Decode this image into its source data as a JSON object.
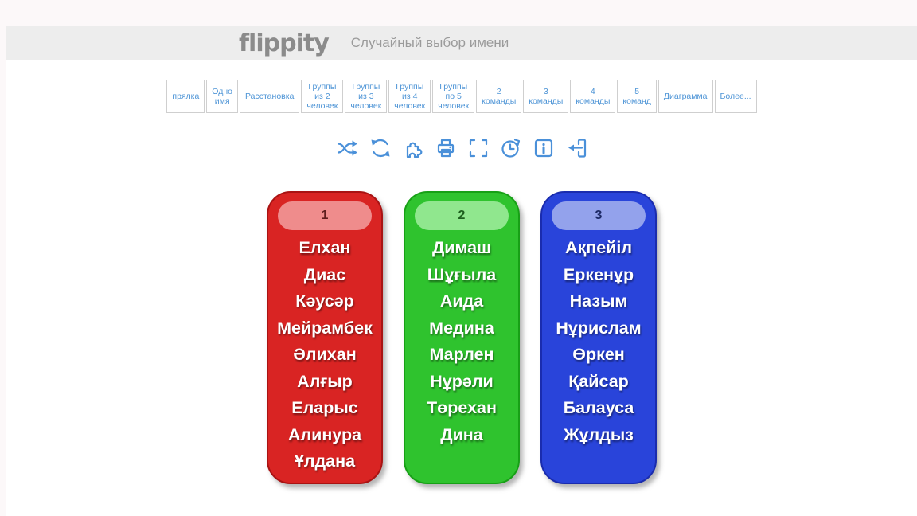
{
  "header": {
    "logo_text": "flippity",
    "page_title": "Случайный выбор имени"
  },
  "tabs": [
    "прялка",
    "Одно имя",
    "Расстановка",
    "Группы из 2 человек",
    "Группы из 3 человек",
    "Группы из 4 человек",
    "Группы по 5 человек",
    "2 команды",
    "3 команды",
    "4 команды",
    "5 команд",
    "Диаграмма",
    "Более..."
  ],
  "toolbar": {
    "icon_color": "#4a90d9",
    "icons": [
      "shuffle-icon",
      "refresh-icon",
      "puzzle-icon",
      "print-icon",
      "fullscreen-icon",
      "timer-icon",
      "info-icon",
      "exit-device-icon"
    ]
  },
  "groups": [
    {
      "number": "1",
      "color": "#d92423",
      "names": [
        "Елхан",
        "Диас",
        "Кәусәр",
        "Мейрамбек",
        "Әлихан",
        "Алғыр",
        "Еларыс",
        "Алинура",
        "Ұлдана"
      ]
    },
    {
      "number": "2",
      "color": "#2fc32e",
      "names": [
        "Димаш",
        "Шұғыла",
        "Аида",
        "Медина",
        "Марлен",
        "Нұрәли",
        "Төрехан",
        "Дина"
      ]
    },
    {
      "number": "3",
      "color": "#2944da",
      "names": [
        "Ақпейіл",
        "Еркенұр",
        "Назым",
        "Нұрислам",
        "Өркен",
        "Қайсар",
        "Балауса",
        "Жұлдыз"
      ]
    }
  ]
}
